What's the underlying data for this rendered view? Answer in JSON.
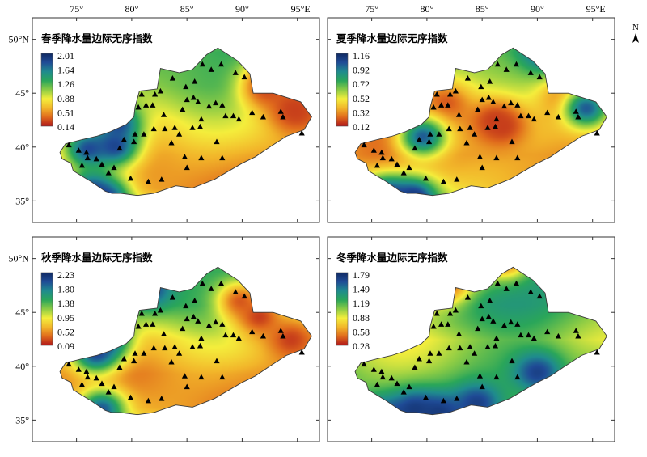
{
  "north_arrow": {
    "label": "N"
  },
  "axes": {
    "lon_ticks": [
      "75°",
      "80°",
      "85°",
      "90°",
      "95°E"
    ],
    "lat_ticks": [
      "50°N",
      "45°",
      "40°",
      "35°"
    ]
  },
  "colormap": [
    "#b0161a",
    "#e06a1c",
    "#f2b62a",
    "#f4ee3c",
    "#8ccc45",
    "#2aa65a",
    "#1f8b8e",
    "#1f4b96",
    "#102a63"
  ],
  "marker_symbol": "black triangle (weather station)",
  "panels": [
    {
      "title": "春季降水量边际无序指数",
      "legend": [
        "2.01",
        "1.64",
        "1.26",
        "0.88",
        "0.51",
        "0.14"
      ],
      "base": [
        0.5,
        0.62,
        0.5,
        0.32,
        0.22,
        0.18,
        0.38
      ],
      "hot": [
        [
          0.43,
          0.92,
          0.46
        ],
        [
          0.36,
          0.91,
          0.44
        ],
        [
          0.34,
          0.81,
          0.35
        ],
        [
          0.33,
          0.83,
          0.29
        ]
      ],
      "cold": [
        [
          0.63,
          0.29,
          0.63
        ],
        [
          0.55,
          0.3,
          0.51
        ],
        [
          0.7,
          0.19,
          0.64
        ],
        [
          0.85,
          0.26,
          0.88
        ],
        [
          0.82,
          0.2,
          0.84
        ]
      ]
    },
    {
      "title": "夏季降水量边际无序指数",
      "legend": [
        "1.16",
        "0.92",
        "0.72",
        "0.52",
        "0.32",
        "0.12"
      ],
      "base": [
        0.48,
        0.58,
        0.38,
        0.22,
        0.2,
        0.3,
        0.5
      ],
      "hot": [
        [
          0.6,
          0.58,
          0.5
        ],
        [
          0.51,
          0.61,
          0.53
        ],
        [
          0.4,
          0.83,
          0.4
        ],
        [
          0.32,
          0.41,
          0.42
        ],
        [
          0.34,
          0.9,
          0.34
        ]
      ],
      "cold": [
        [
          0.92,
          0.3,
          0.88
        ],
        [
          1.0,
          0.2,
          0.87
        ],
        [
          0.82,
          0.76,
          0.16
        ],
        [
          0.74,
          0.9,
          0.44
        ],
        [
          0.65,
          0.33,
          0.58
        ]
      ]
    },
    {
      "title": "秋季降水量边际无序指数",
      "legend": [
        "2.23",
        "1.80",
        "1.38",
        "0.95",
        "0.52",
        "0.09"
      ],
      "base": [
        0.5,
        0.65,
        0.55,
        0.3,
        0.2,
        0.2,
        0.4
      ],
      "hot": [
        [
          0.6,
          0.9,
          0.5
        ],
        [
          0.66,
          0.79,
          0.39
        ],
        [
          0.49,
          0.72,
          0.31
        ]
      ],
      "cold": [
        [
          0.41,
          0.4,
          0.25
        ],
        [
          0.73,
          0.22,
          0.57
        ],
        [
          0.89,
          0.24,
          0.84
        ],
        [
          0.66,
          0.26,
          0.49
        ]
      ]
    },
    {
      "title": "冬季降水量边际无序指数",
      "legend": [
        "1.79",
        "1.49",
        "1.19",
        "0.88",
        "0.58",
        "0.28"
      ],
      "base": [
        0.58,
        0.7,
        0.62,
        0.45,
        0.55,
        0.6,
        0.6
      ],
      "hot": [
        [
          0.4,
          0.62,
          0.1
        ],
        [
          0.36,
          0.58,
          0.05
        ],
        [
          0.45,
          0.4,
          0.24
        ],
        [
          0.54,
          0.45,
          0.15
        ],
        [
          0.61,
          0.25,
          0.33
        ]
      ],
      "cold": [
        [
          0.85,
          0.19,
          0.88
        ],
        [
          0.68,
          0.3,
          0.84
        ],
        [
          0.79,
          0.73,
          0.66
        ],
        [
          0.7,
          0.52,
          0.81
        ],
        [
          0.85,
          0.39,
          0.86
        ]
      ]
    }
  ]
}
